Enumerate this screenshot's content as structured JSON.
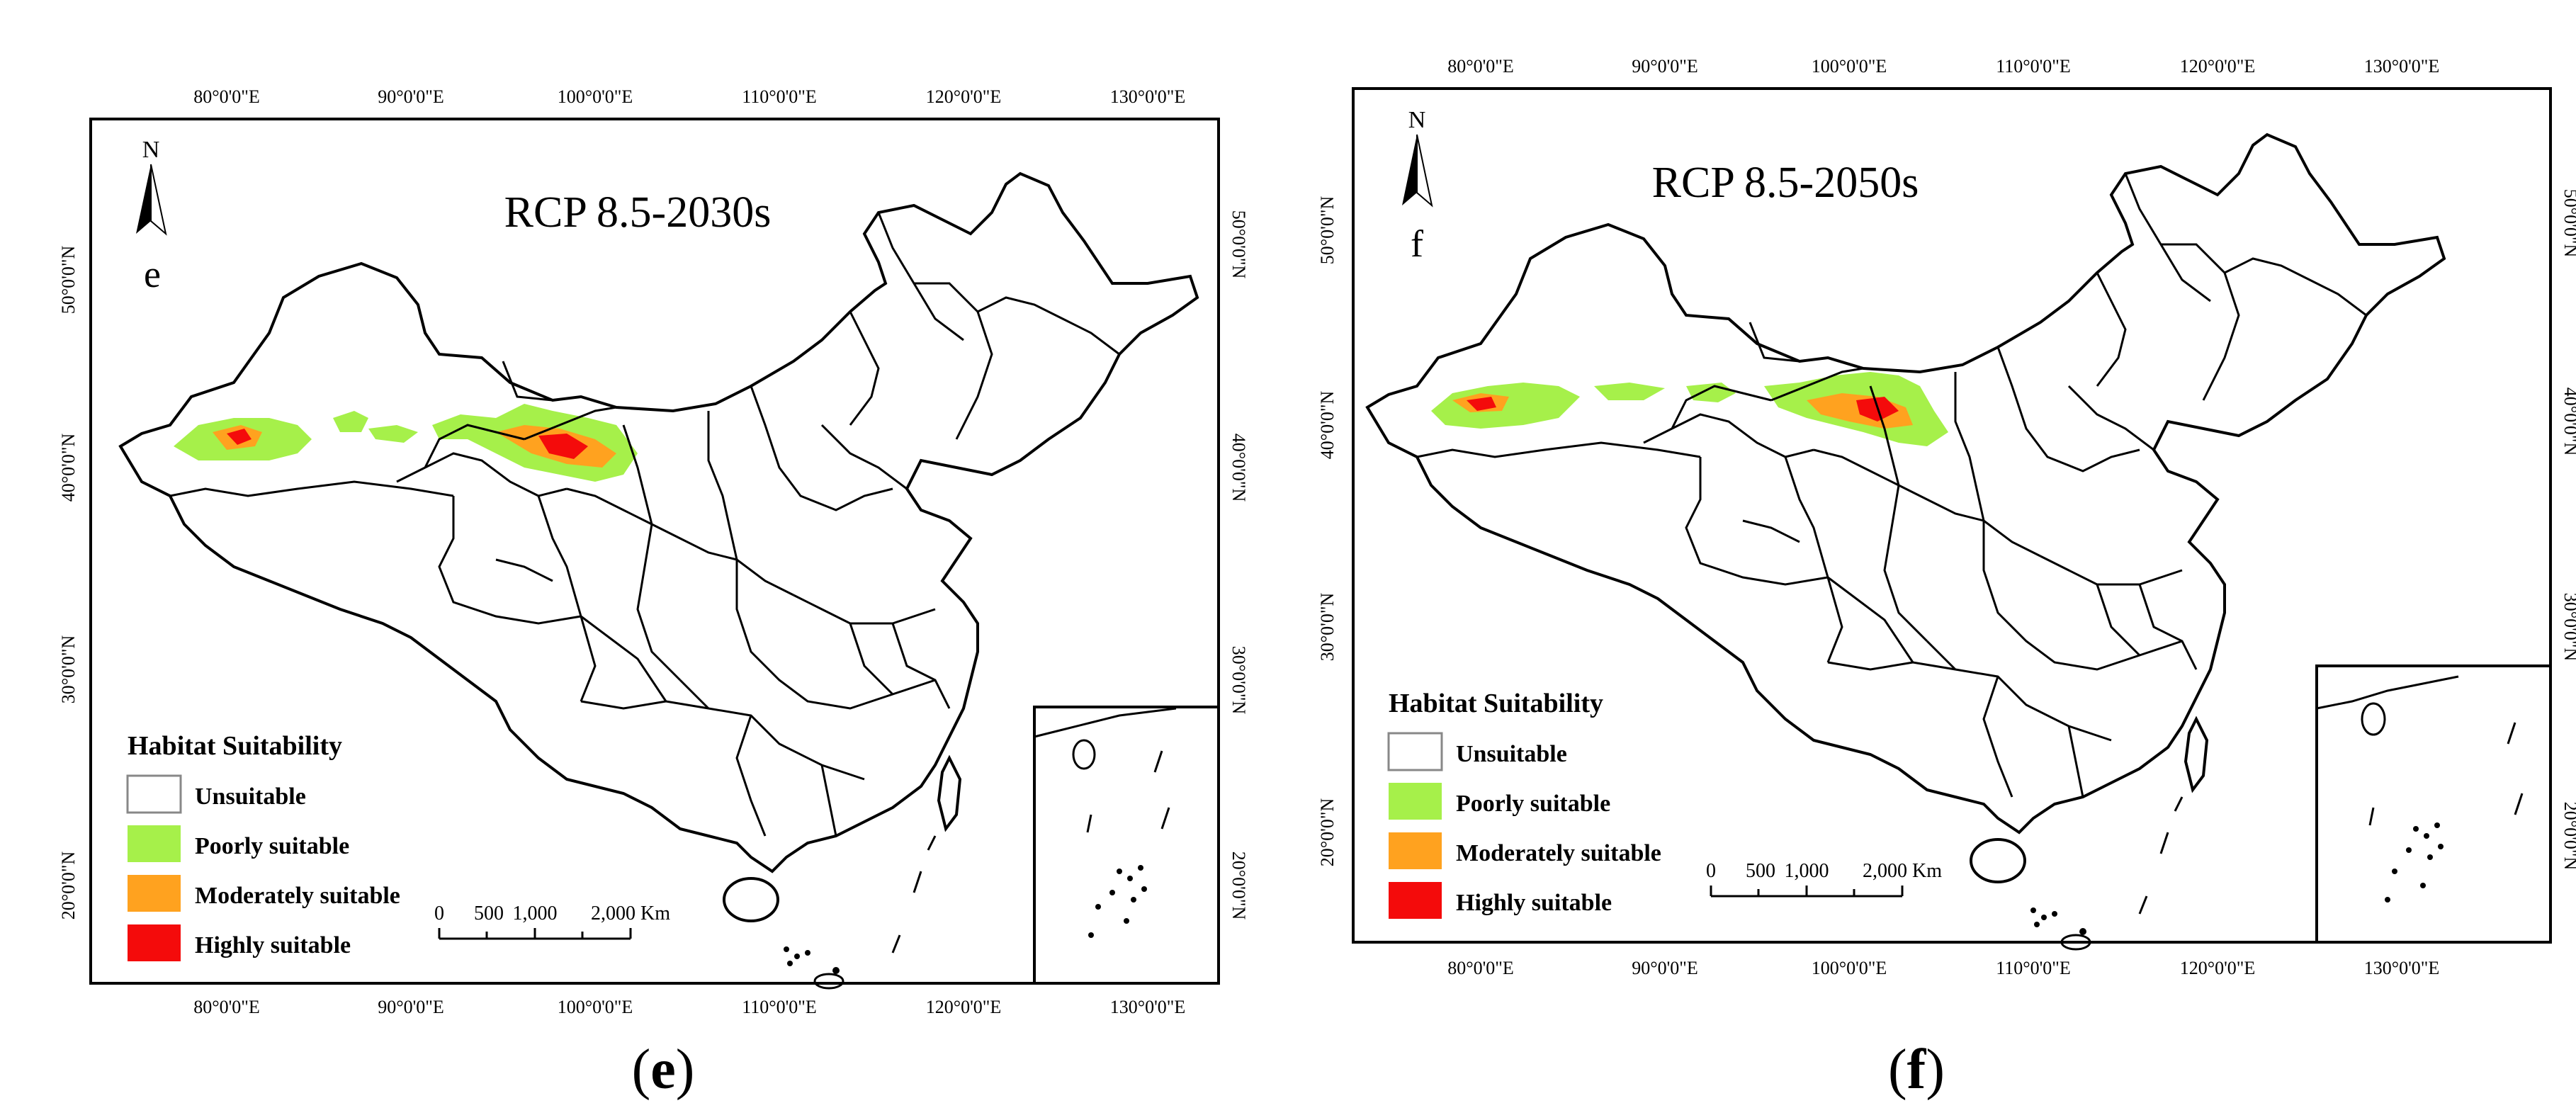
{
  "colors": {
    "unsuitable": "#ffffff",
    "poorly": "#a6f04a",
    "moderately": "#ffa21f",
    "highly": "#f40b0b",
    "border": "#000000"
  },
  "legend": {
    "title": "Habitat Suitability",
    "items": [
      {
        "label": "Unsuitable",
        "color": "#ffffff"
      },
      {
        "label": "Poorly suitable",
        "color": "#a6f04a"
      },
      {
        "label": "Moderately suitable",
        "color": "#ffa21f"
      },
      {
        "label": "Highly suitable",
        "color": "#f40b0b"
      }
    ]
  },
  "scalebar": {
    "labels": [
      "0",
      "500",
      "1,000",
      "2,000 Km"
    ]
  },
  "north_arrow": "N",
  "longitude_labels": [
    "80°0'0\"E",
    "90°0'0\"E",
    "100°0'0\"E",
    "110°0'0\"E",
    "120°0'0\"E",
    "130°0'0\"E"
  ],
  "latitude_labels": [
    "50°0'0\"N",
    "40°0'0\"N",
    "30°0'0\"N",
    "20°0'0\"N"
  ],
  "panels": [
    {
      "title": "RCP 8.5-2030s",
      "letter": "e",
      "caption_open": "(",
      "caption_letter": "e",
      "caption_close": ")"
    },
    {
      "title": "RCP 8.5-2050s",
      "letter": "f",
      "caption_open": "(",
      "caption_letter": "f",
      "caption_close": ")"
    }
  ]
}
